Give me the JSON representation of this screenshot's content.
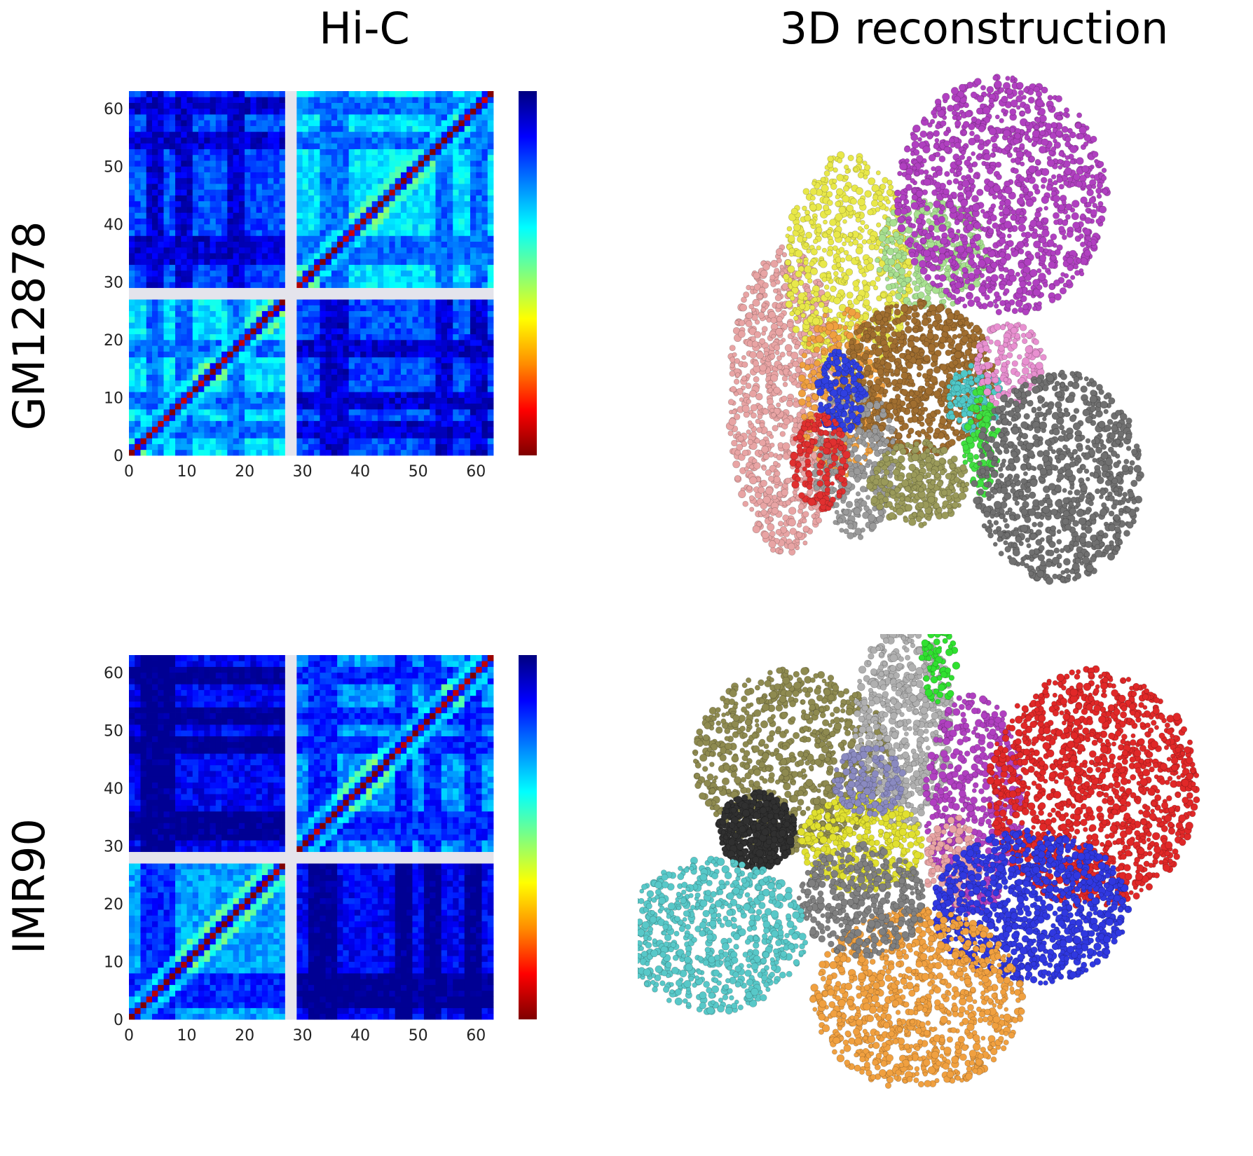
{
  "header": {
    "left_title": "Hi-C",
    "right_title": "3D reconstruction"
  },
  "rows": [
    {
      "label": "GM12878"
    },
    {
      "label": "IMR90"
    }
  ],
  "chart_data": [
    {
      "type": "heatmap",
      "title": "",
      "row_label": "GM12878",
      "xlabel": "",
      "ylabel": "",
      "x_range": [
        0,
        63
      ],
      "y_range": [
        0,
        63
      ],
      "x_ticks": [
        "0",
        "10",
        "20",
        "30",
        "40",
        "50",
        "60"
      ],
      "y_ticks": [
        "0",
        "10",
        "20",
        "30",
        "40",
        "50",
        "60"
      ],
      "gap_bins": [
        27,
        29
      ],
      "colormap": [
        "#7f0000",
        "#ff0000",
        "#ff8c00",
        "#ffff00",
        "#7fff7f",
        "#00ffff",
        "#0080ff",
        "#0000ff",
        "#00007f"
      ],
      "colorbar": "shown, no tick labels",
      "intra_background": 0.35,
      "inter_background": 0.2,
      "dark_bands": [
        4,
        9,
        18,
        34,
        36,
        54,
        60
      ]
    },
    {
      "type": "heatmap",
      "title": "",
      "row_label": "IMR90",
      "xlabel": "",
      "ylabel": "",
      "x_range": [
        0,
        63
      ],
      "y_range": [
        0,
        63
      ],
      "x_ticks": [
        "0",
        "10",
        "20",
        "30",
        "40",
        "50",
        "60"
      ],
      "y_ticks": [
        "0",
        "10",
        "20",
        "30",
        "40",
        "50",
        "60"
      ],
      "gap_bins": [
        27,
        29
      ],
      "colormap": [
        "#7f0000",
        "#ff0000",
        "#ff8c00",
        "#ffff00",
        "#7fff7f",
        "#00ffff",
        "#0080ff",
        "#0000ff",
        "#00007f"
      ],
      "colorbar": "shown, no tick labels",
      "intra_background": 0.28,
      "inter_background": 0.12,
      "dark_bands": [
        3,
        6,
        32,
        34,
        47,
        52,
        59
      ]
    }
  ],
  "structures": [
    {
      "row_label": "GM12878",
      "cluster_colors": [
        "#e8a4a4",
        "#e8e84a",
        "#f0a040",
        "#a8e090",
        "#b040c0",
        "#a06e30",
        "#9a9a9a",
        "#3040e0",
        "#e03030",
        "#9a9a5a",
        "#50c8c8",
        "#40e040",
        "#e890d0",
        "#707070"
      ]
    },
    {
      "row_label": "IMR90",
      "cluster_colors": [
        "#8e8a50",
        "#b0b0b0",
        "#30e030",
        "#b040c0",
        "#e02828",
        "#303030",
        "#e0e030",
        "#8a8ac0",
        "#e8a4a4",
        "#3038e0",
        "#f0a040",
        "#808080",
        "#58c8c8"
      ]
    }
  ]
}
